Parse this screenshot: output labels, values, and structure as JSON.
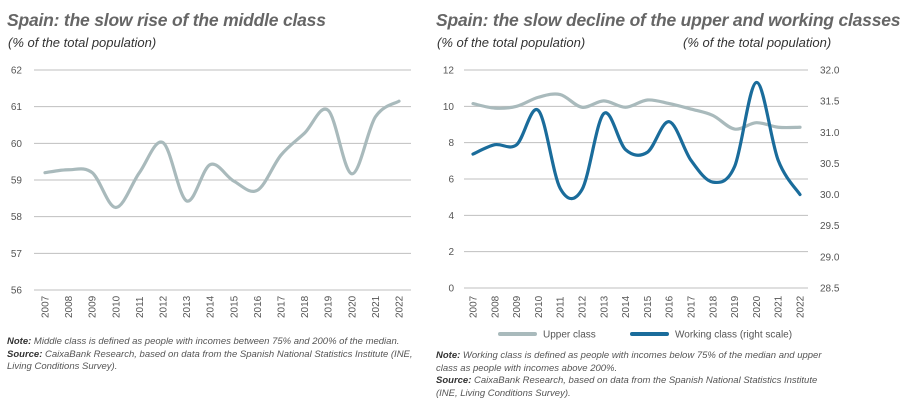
{
  "left": {
    "title": "Spain: the slow rise of the middle class",
    "subtitle": "(% of the total population)",
    "note_label": "Note:",
    "note_text": " Middle class is defined as people with incomes between 75% and 200% of the median.",
    "source_label": "Source:",
    "source_text": " CaixaBank Research, based on data from the Spanish National Statistics Institute (INE, Living Conditions Survey)."
  },
  "right": {
    "title": "Spain: the slow decline of the upper and working classes",
    "subtitle_left": "(% of the total population)",
    "subtitle_right": "(% of the total population)",
    "note_label": "Note:",
    "note_text": " Working class is defined as people with incomes below 75% of the median and upper class as people with incomes above 200%.",
    "source_label": "Source:",
    "source_text": " CaixaBank Research, based on data from the Spanish National Statistics Institute (INE, Living Conditions Survey)."
  },
  "colors": {
    "middle_class": "#a9babc",
    "upper_class": "#a9babc",
    "working_class": "#1a6c9b",
    "grid": "#bfbfbf"
  },
  "chart_data": [
    {
      "type": "line",
      "title": "Spain: the slow rise of the middle class",
      "subtitle": "(% of the total population)",
      "categories": [
        "2007",
        "2008",
        "2009",
        "2010",
        "2011",
        "2012",
        "2013",
        "2014",
        "2015",
        "2016",
        "2017",
        "2018",
        "2019",
        "2020",
        "2021",
        "2022"
      ],
      "ylim": [
        56,
        62
      ],
      "yticks": [
        "62",
        "61",
        "60",
        "59",
        "58",
        "57",
        "56"
      ],
      "grid": true,
      "series": [
        {
          "values": [
            59.2,
            59.28,
            59.2,
            58.25,
            59.2,
            60.02,
            58.43,
            59.42,
            58.97,
            58.72,
            59.68,
            60.28,
            60.9,
            59.17,
            60.72,
            61.15
          ]
        }
      ]
    },
    {
      "type": "line",
      "title": "Spain: the slow decline of the upper and working classes",
      "subtitle": "(% of the total population)",
      "categories": [
        "2007",
        "2008",
        "2009",
        "2010",
        "2011",
        "2012",
        "2013",
        "2014",
        "2015",
        "2016",
        "2017",
        "2018",
        "2019",
        "2020",
        "2021",
        "2022"
      ],
      "ylim": [
        0,
        12
      ],
      "yticks": [
        "12",
        "10",
        "8",
        "6",
        "4",
        "2",
        "0"
      ],
      "y2lim": [
        28.5,
        32.0
      ],
      "y2ticks": [
        "32.0",
        "31.5",
        "31.0",
        "30.5",
        "30.0",
        "29.5",
        "29.0",
        "28.5"
      ],
      "grid": true,
      "legend_position": "bottom",
      "series": [
        {
          "name": "Upper class",
          "axis": "left",
          "values": [
            10.15,
            9.9,
            10.0,
            10.5,
            10.65,
            9.95,
            10.3,
            9.95,
            10.35,
            10.15,
            9.85,
            9.5,
            8.75,
            9.1,
            8.85,
            8.85
          ]
        },
        {
          "name": "Working class (right scale)",
          "axis": "right",
          "values": [
            30.65,
            30.8,
            30.8,
            31.35,
            30.1,
            30.08,
            31.3,
            30.72,
            30.68,
            31.17,
            30.55,
            30.2,
            30.45,
            31.8,
            30.55,
            30.0
          ]
        }
      ]
    }
  ]
}
